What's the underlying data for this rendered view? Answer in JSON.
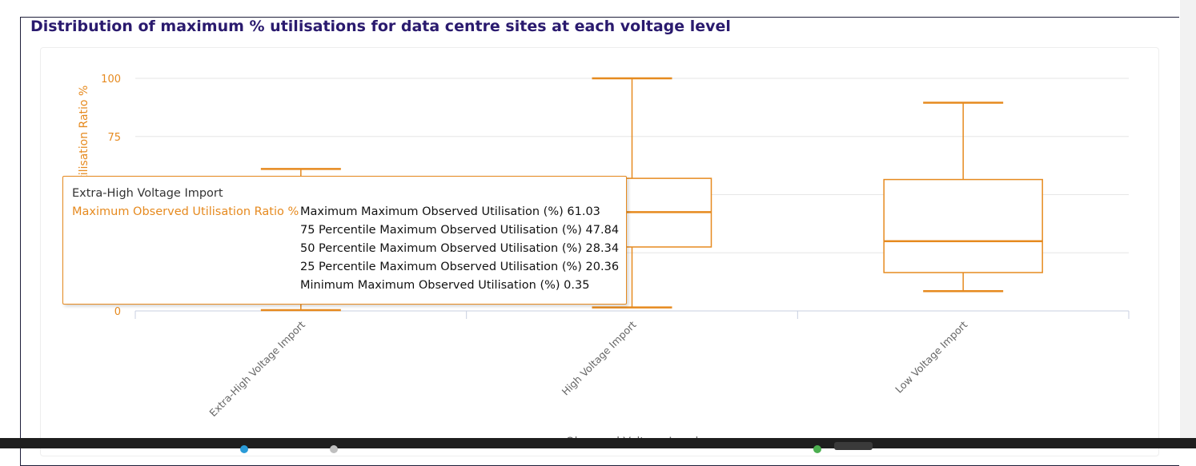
{
  "chart_title": "Distribution of maximum % utilisations for data centre sites at each voltage level",
  "colors": {
    "series": "#e68a1f",
    "title": "#2a1a6e",
    "grid": "#e6e6e6",
    "axis_text": "#666666"
  },
  "chart_data": {
    "type": "boxplot",
    "title": "Distribution of maximum % utilisations for data centre sites at each voltage level",
    "ylabel": "Maximum Observed Utilisation Ratio %",
    "xlabel": "Observed Voltage Level",
    "ylim": [
      0,
      100
    ],
    "yticks": [
      0,
      25,
      50,
      75,
      100
    ],
    "grid": true,
    "categories": [
      "Extra-High Voltage Import",
      "High Voltage Import",
      "Low Voltage Import"
    ],
    "series": [
      {
        "name": "Maximum Observed Utilisation Ratio %",
        "boxes": [
          {
            "min": 0.35,
            "q1": 20.36,
            "median": 28.34,
            "q3": 47.84,
            "max": 61.03
          },
          {
            "min": 1.5,
            "q1": 27.5,
            "median": 42.5,
            "q3": 57.0,
            "max": 100
          },
          {
            "min": 8.5,
            "q1": 16.5,
            "median": 30.0,
            "q3": 56.5,
            "max": 89.5
          }
        ]
      }
    ]
  },
  "tooltip": {
    "category": "Extra-High Voltage Import",
    "series": "Maximum Observed Utilisation Ratio %",
    "stats": [
      "Maximum Maximum Observed Utilisation (%) 61.03",
      "75 Percentile Maximum Observed Utilisation (%) 47.84",
      "50 Percentile Maximum Observed Utilisation (%) 28.34",
      "25 Percentile Maximum Observed Utilisation (%) 20.36",
      "Minimum Maximum Observed Utilisation (%) 0.35"
    ]
  }
}
